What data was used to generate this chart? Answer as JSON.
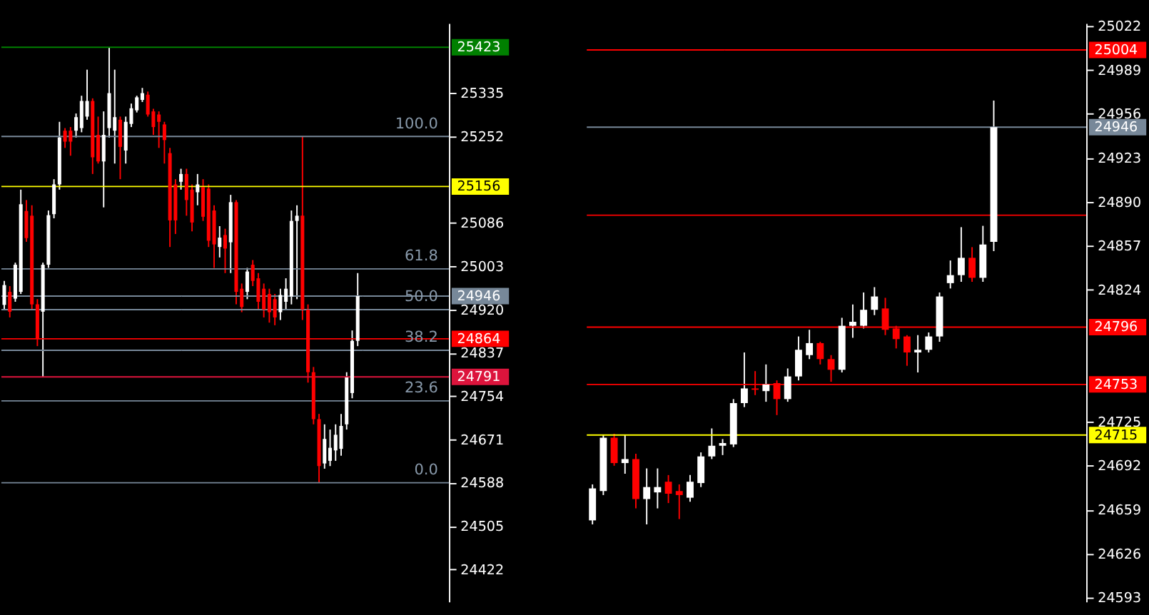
{
  "chart_data": [
    {
      "type": "candlestick",
      "categories": [
        null,
        null,
        null,
        null,
        null,
        null,
        null,
        null,
        null,
        null,
        null,
        null,
        null,
        null,
        null,
        null,
        null,
        null,
        null,
        null,
        null,
        null,
        null,
        null,
        null,
        null,
        null,
        null,
        null,
        null,
        null,
        null,
        null,
        null,
        null,
        null,
        null,
        null,
        null,
        null,
        null,
        null,
        null,
        null,
        null,
        null,
        null,
        null,
        null,
        null,
        null,
        null,
        null,
        null,
        null,
        null,
        null,
        null,
        null,
        null,
        null,
        null,
        null,
        null,
        null,
        null,
        null,
        null,
        null,
        null,
        null,
        null,
        null,
        null,
        null,
        null,
        null,
        null,
        null,
        null,
        null
      ],
      "ylim": [
        24360,
        25469
      ],
      "yticks": [
        24422,
        24505,
        24588,
        24671,
        24754,
        24837,
        24920,
        25003,
        25086,
        25252,
        25335
      ],
      "ohlc": [
        [
          24929,
          24975,
          24920,
          24967
        ],
        [
          24954,
          24965,
          24905,
          24916
        ],
        [
          24941,
          25010,
          24935,
          25006
        ],
        [
          24954,
          25150,
          24950,
          25122
        ],
        [
          25109,
          25130,
          25050,
          25057
        ],
        [
          25100,
          25120,
          24920,
          24930
        ],
        [
          24930,
          24940,
          24850,
          24865
        ],
        [
          24916,
          25010,
          24791,
          25006
        ],
        [
          25006,
          25110,
          25000,
          25101
        ],
        [
          25103,
          25170,
          25095,
          25160
        ],
        [
          25160,
          25280,
          25150,
          25250
        ],
        [
          25263,
          25268,
          25230,
          25242
        ],
        [
          25263,
          25270,
          25215,
          25242
        ],
        [
          25263,
          25296,
          25250,
          25289
        ],
        [
          25268,
          25330,
          25260,
          25320
        ],
        [
          25290,
          25380,
          25284,
          25320
        ],
        [
          25320,
          25325,
          25180,
          25212
        ],
        [
          25255,
          25290,
          25200,
          25204
        ],
        [
          25204,
          25300,
          25116,
          25255
        ],
        [
          25268,
          25423,
          25250,
          25335
        ],
        [
          25263,
          25380,
          25200,
          25289
        ],
        [
          25284,
          25290,
          25170,
          25232
        ],
        [
          25225,
          25290,
          25200,
          25280
        ],
        [
          25276,
          25315,
          25270,
          25306
        ],
        [
          25302,
          25330,
          25298,
          25327
        ],
        [
          25322,
          25345,
          25318,
          25335
        ],
        [
          25332,
          25338,
          25290,
          25294
        ],
        [
          25300,
          25305,
          25255,
          25270
        ],
        [
          25294,
          25300,
          25230,
          25280
        ],
        [
          25275,
          25280,
          25200,
          25245
        ],
        [
          25220,
          25230,
          25040,
          25091
        ],
        [
          25160,
          25170,
          25065,
          25091
        ],
        [
          25165,
          25190,
          25150,
          25180
        ],
        [
          25180,
          25190,
          25100,
          25130
        ],
        [
          25150,
          25160,
          25070,
          25087
        ],
        [
          25145,
          25180,
          25120,
          25160
        ],
        [
          25155,
          25170,
          25090,
          25098
        ],
        [
          25152,
          25160,
          25040,
          25052
        ],
        [
          25110,
          25120,
          25000,
          25045
        ],
        [
          25040,
          25080,
          25020,
          25058
        ],
        [
          25063,
          25075,
          24990,
          25037
        ],
        [
          25049,
          25140,
          24990,
          25126
        ],
        [
          25126,
          25130,
          24930,
          24954
        ],
        [
          24960,
          24970,
          24915,
          24925
        ],
        [
          24954,
          25000,
          24940,
          24993
        ],
        [
          25006,
          25015,
          24965,
          24975
        ],
        [
          24980,
          24990,
          24920,
          24935
        ],
        [
          24960,
          24970,
          24905,
          24920
        ],
        [
          24950,
          24960,
          24895,
          24915
        ],
        [
          24940,
          24950,
          24890,
          24905
        ],
        [
          24915,
          24960,
          24900,
          24948
        ],
        [
          24935,
          24980,
          24920,
          24960
        ],
        [
          24945,
          25110,
          24930,
          25090
        ],
        [
          25090,
          25120,
          24940,
          25100
        ],
        [
          25100,
          25252,
          24900,
          24920
        ],
        [
          24920,
          24930,
          24780,
          24800
        ],
        [
          24800,
          24810,
          24700,
          24710
        ],
        [
          24710,
          24720,
          24588,
          24620
        ],
        [
          24625,
          24700,
          24615,
          24672
        ],
        [
          24630,
          24690,
          24620,
          24655
        ],
        [
          24650,
          24700,
          24630,
          24680
        ],
        [
          24653,
          24720,
          24640,
          24697
        ],
        [
          24700,
          24800,
          24690,
          24790
        ],
        [
          24760,
          24880,
          24750,
          24860
        ],
        [
          24860,
          24990,
          24850,
          24946
        ],
        null,
        null,
        null,
        null,
        null,
        null,
        null,
        null,
        null,
        null,
        null,
        null,
        null,
        null,
        null,
        null
      ],
      "ref_lines": [
        {
          "axis": "y",
          "value": 25423,
          "label": "25423",
          "color": "#008000"
        },
        {
          "axis": "y",
          "value": 25156,
          "label": "25156",
          "color": "#ffff00"
        },
        {
          "axis": "y",
          "value": 24946,
          "label": "24946",
          "color": "#778899"
        },
        {
          "axis": "y",
          "value": 24864,
          "label": "24864",
          "color": "#ff0000"
        },
        {
          "axis": "y",
          "value": 24791,
          "label": "24791",
          "color": "#dc143c"
        },
        {
          "axis": "y",
          "value": 25252,
          "color": "#778899"
        },
        {
          "axis": "y",
          "value": 24998,
          "color": "#778899"
        },
        {
          "axis": "y",
          "value": 24920,
          "color": "#778899"
        },
        {
          "axis": "y",
          "value": 24842,
          "color": "#778899"
        },
        {
          "axis": "y",
          "value": 24745,
          "color": "#778899"
        },
        {
          "axis": "y",
          "value": 24588,
          "color": "#778899"
        }
      ],
      "annotations": [
        {
          "text": "100.0",
          "y": 25252
        },
        {
          "text": "61.8",
          "y": 24998
        },
        {
          "text": "50.0",
          "y": 24920
        },
        {
          "text": "38.2",
          "y": 24842
        },
        {
          "text": "23.6",
          "y": 24745
        },
        {
          "text": "0.0",
          "y": 24588
        }
      ],
      "tick_labels": "y",
      "grid": false
    },
    {
      "type": "candlestick",
      "categories": [
        null,
        null,
        null,
        null,
        null,
        null,
        null,
        null,
        null,
        null,
        null,
        null,
        null,
        null,
        null,
        null,
        null,
        null,
        null,
        null,
        null,
        null,
        null,
        null,
        null,
        null,
        null,
        null,
        null,
        null,
        null,
        null,
        null,
        null,
        null,
        null,
        null,
        null,
        null,
        null,
        null,
        null,
        null,
        null,
        null,
        null
      ],
      "ylim": [
        24590,
        25024
      ],
      "yticks": [
        24593,
        24626,
        24659,
        24692,
        24725,
        24824,
        24857,
        24890,
        24923,
        24956,
        24989,
        25022
      ],
      "ohlc": [
        [
          24651,
          24678,
          24648,
          24675
        ],
        [
          24673,
          24715,
          24670,
          24713
        ],
        [
          24713,
          24716,
          24692,
          24694
        ],
        [
          24694,
          24715,
          24686,
          24697
        ],
        [
          24697,
          24701,
          24660,
          24667
        ],
        [
          24667,
          24690,
          24648,
          24676
        ],
        [
          24672,
          24690,
          24660,
          24676
        ],
        [
          24680,
          24685,
          24664,
          24671
        ],
        [
          24673,
          24678,
          24652,
          24670
        ],
        [
          24668,
          24685,
          24665,
          24680
        ],
        [
          24679,
          24702,
          24676,
          24699
        ],
        [
          24699,
          24720,
          24697,
          24707
        ],
        [
          24707,
          24712,
          24700,
          24709
        ],
        [
          24708,
          24742,
          24706,
          24739
        ],
        [
          24739,
          24777,
          24736,
          24750
        ],
        [
          24750,
          24763,
          24745,
          24749
        ],
        [
          24748,
          24768,
          24740,
          24753
        ],
        [
          24754,
          24756,
          24730,
          24742
        ],
        [
          24742,
          24765,
          24740,
          24759
        ],
        [
          24759,
          24789,
          24756,
          24779
        ],
        [
          24775,
          24794,
          24772,
          24784
        ],
        [
          24784,
          24785,
          24768,
          24772
        ],
        [
          24772,
          24775,
          24755,
          24764
        ],
        [
          24764,
          24803,
          24762,
          24797
        ],
        [
          24797,
          24813,
          24788,
          24800
        ],
        [
          24797,
          24822,
          24795,
          24809
        ],
        [
          24809,
          24826,
          24805,
          24819
        ],
        [
          24810,
          24818,
          24790,
          24794
        ],
        [
          24795,
          24797,
          24780,
          24787
        ],
        [
          24789,
          24790,
          24767,
          24777
        ],
        [
          24777,
          24790,
          24762,
          24779
        ],
        [
          24779,
          24792,
          24777,
          24789
        ],
        [
          24789,
          24822,
          24785,
          24819
        ],
        [
          24829,
          24846,
          24825,
          24835
        ],
        [
          24835,
          24871,
          24830,
          24848
        ],
        [
          24848,
          24856,
          24830,
          24833
        ],
        [
          24833,
          24872,
          24830,
          24858
        ],
        [
          24860,
          24966,
          24853,
          24946
        ],
        null,
        null,
        null,
        null,
        null,
        null,
        null,
        null
      ],
      "ref_lines": [
        {
          "axis": "y",
          "value": 25004,
          "label": "25004",
          "color": "#ff0000"
        },
        {
          "axis": "y",
          "value": 24946,
          "label": "24946",
          "color": "#778899"
        },
        {
          "axis": "y",
          "value": 24880,
          "color": "#ff0000"
        },
        {
          "axis": "y",
          "value": 24796,
          "label": "24796",
          "color": "#ff0000"
        },
        {
          "axis": "y",
          "value": 24753,
          "label": "24753",
          "color": "#ff0000"
        },
        {
          "axis": "y",
          "value": 24715,
          "label": "24715",
          "color": "#ffff00"
        }
      ],
      "tick_labels": "y",
      "grid": false
    }
  ]
}
